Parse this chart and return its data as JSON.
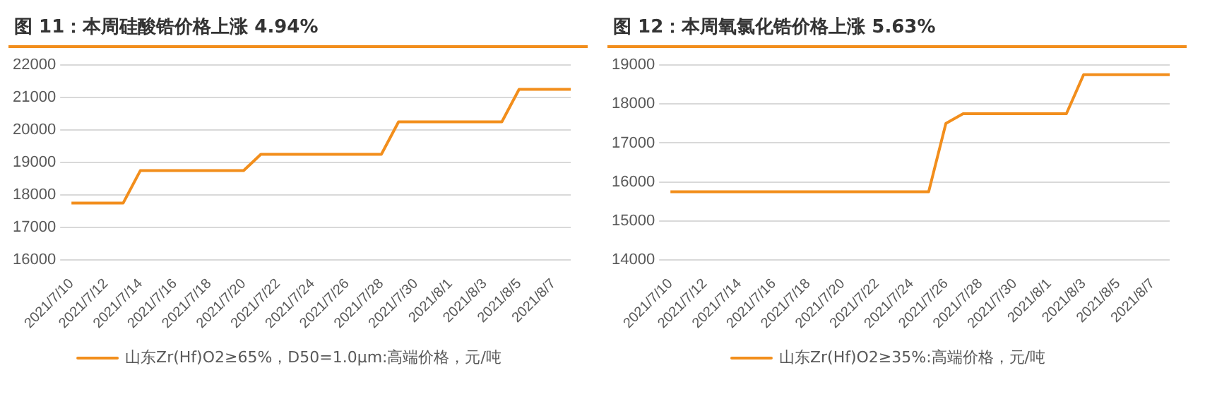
{
  "chart_data": [
    {
      "type": "line",
      "title": "图 11：本周硅酸锆价格上涨 4.94%",
      "categories": [
        "2021/7/10",
        null,
        "2021/7/12",
        null,
        "2021/7/14",
        null,
        "2021/7/16",
        null,
        "2021/7/18",
        null,
        "2021/7/20",
        null,
        "2021/7/22",
        null,
        "2021/7/24",
        null,
        "2021/7/26",
        null,
        "2021/7/28",
        null,
        "2021/7/30",
        null,
        "2021/8/1",
        null,
        "2021/8/3",
        null,
        "2021/8/5",
        null,
        "2021/8/7",
        null
      ],
      "series": [
        {
          "name": "山东Zr(Hf)O2≥65%，D50=1.0μm:高端价格，元/吨",
          "color": "#f28e1c",
          "values": [
            17750,
            17750,
            17750,
            17750,
            18750,
            18750,
            18750,
            18750,
            18750,
            18750,
            18750,
            19250,
            19250,
            19250,
            19250,
            19250,
            19250,
            19250,
            19250,
            20250,
            20250,
            20250,
            20250,
            20250,
            20250,
            20250,
            21250,
            21250,
            21250,
            21250
          ]
        }
      ],
      "ylim": [
        16000,
        22000
      ],
      "yticks": [
        16000,
        17000,
        18000,
        19000,
        20000,
        21000,
        22000
      ],
      "grid": "y",
      "legend": "bottom",
      "marker": "none",
      "line_style": "solid"
    },
    {
      "type": "line",
      "title": "图 12：本周氧氯化锆价格上涨 5.63%",
      "categories": [
        "2021/7/10",
        null,
        "2021/7/12",
        null,
        "2021/7/14",
        null,
        "2021/7/16",
        null,
        "2021/7/18",
        null,
        "2021/7/20",
        null,
        "2021/7/22",
        null,
        "2021/7/24",
        null,
        "2021/7/26",
        null,
        "2021/7/28",
        null,
        "2021/7/30",
        null,
        "2021/8/1",
        null,
        "2021/8/3",
        null,
        "2021/8/5",
        null,
        "2021/8/7",
        null
      ],
      "series": [
        {
          "name": "山东Zr(Hf)O2≥35%:高端价格，元/吨",
          "color": "#f28e1c",
          "values": [
            15750,
            15750,
            15750,
            15750,
            15750,
            15750,
            15750,
            15750,
            15750,
            15750,
            15750,
            15750,
            15750,
            15750,
            15750,
            15750,
            17500,
            17750,
            17750,
            17750,
            17750,
            17750,
            17750,
            17750,
            18750,
            18750,
            18750,
            18750,
            18750,
            18750
          ]
        }
      ],
      "ylim": [
        14000,
        19000
      ],
      "yticks": [
        14000,
        15000,
        16000,
        17000,
        18000,
        19000
      ],
      "grid": "y",
      "legend": "bottom",
      "marker": "none",
      "line_style": "solid"
    }
  ]
}
